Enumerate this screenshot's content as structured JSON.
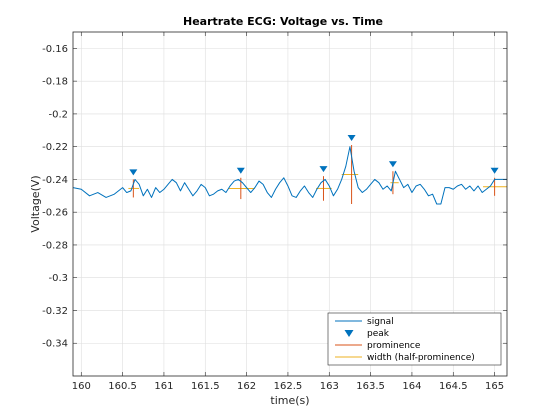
{
  "chart_data": {
    "type": "line",
    "title": "Heartrate ECG: Voltage vs. Time",
    "xlabel": "time(s)",
    "ylabel": "Voltage(V)",
    "xlim": [
      159.9,
      165.15
    ],
    "ylim": [
      -0.36,
      -0.15
    ],
    "xticks": [
      160,
      160.5,
      161,
      161.5,
      162,
      162.5,
      163,
      163.5,
      164,
      164.5,
      165
    ],
    "xtick_labels": [
      "160",
      "160.5",
      "161",
      "161.5",
      "162",
      "162.5",
      "163",
      "163.5",
      "164",
      "164.5",
      "165"
    ],
    "yticks": [
      -0.16,
      -0.18,
      -0.2,
      -0.22,
      -0.24,
      -0.26,
      -0.28,
      -0.3,
      -0.32,
      -0.34
    ],
    "ytick_labels": [
      "-0.16",
      "-0.18",
      "-0.2",
      "-0.22",
      "-0.24",
      "-0.26",
      "-0.28",
      "-0.3",
      "-0.32",
      "-0.34"
    ],
    "grid": true,
    "legend_position": "bottom-right",
    "legend": [
      "signal",
      "peak",
      "prominence",
      "width (half-prominence)"
    ],
    "series": [
      {
        "name": "signal",
        "x": [
          159.9,
          160.0,
          160.1,
          160.2,
          160.3,
          160.4,
          160.5,
          160.55,
          160.6,
          160.65,
          160.7,
          160.75,
          160.8,
          160.85,
          160.9,
          160.95,
          161.0,
          161.05,
          161.1,
          161.15,
          161.2,
          161.25,
          161.3,
          161.35,
          161.4,
          161.45,
          161.5,
          161.55,
          161.6,
          161.65,
          161.7,
          161.75,
          161.8,
          161.85,
          161.9,
          161.95,
          162.0,
          162.05,
          162.1,
          162.15,
          162.2,
          162.25,
          162.3,
          162.35,
          162.4,
          162.45,
          162.5,
          162.55,
          162.6,
          162.65,
          162.7,
          162.75,
          162.8,
          162.85,
          162.9,
          162.95,
          163.0,
          163.05,
          163.1,
          163.15,
          163.2,
          163.25,
          163.3,
          163.35,
          163.4,
          163.45,
          163.5,
          163.55,
          163.6,
          163.65,
          163.7,
          163.75,
          163.8,
          163.85,
          163.9,
          163.95,
          164.0,
          164.05,
          164.1,
          164.15,
          164.2,
          164.25,
          164.3,
          164.35,
          164.4,
          164.45,
          164.5,
          164.55,
          164.6,
          164.65,
          164.7,
          164.75,
          164.8,
          164.85,
          164.9,
          164.95,
          165.0,
          165.05,
          165.1,
          165.15
        ],
        "y": [
          -0.245,
          -0.246,
          -0.25,
          -0.248,
          -0.251,
          -0.249,
          -0.245,
          -0.248,
          -0.247,
          -0.24,
          -0.243,
          -0.25,
          -0.246,
          -0.251,
          -0.245,
          -0.248,
          -0.246,
          -0.243,
          -0.24,
          -0.242,
          -0.247,
          -0.242,
          -0.246,
          -0.25,
          -0.247,
          -0.243,
          -0.245,
          -0.25,
          -0.249,
          -0.247,
          -0.246,
          -0.248,
          -0.244,
          -0.241,
          -0.24,
          -0.242,
          -0.245,
          -0.248,
          -0.245,
          -0.241,
          -0.243,
          -0.248,
          -0.251,
          -0.246,
          -0.242,
          -0.239,
          -0.244,
          -0.25,
          -0.251,
          -0.247,
          -0.244,
          -0.248,
          -0.251,
          -0.246,
          -0.242,
          -0.24,
          -0.244,
          -0.25,
          -0.246,
          -0.24,
          -0.232,
          -0.22,
          -0.235,
          -0.245,
          -0.248,
          -0.246,
          -0.243,
          -0.24,
          -0.242,
          -0.246,
          -0.244,
          -0.247,
          -0.235,
          -0.24,
          -0.245,
          -0.243,
          -0.248,
          -0.244,
          -0.243,
          -0.246,
          -0.25,
          -0.249,
          -0.255,
          -0.255,
          -0.245,
          -0.245,
          -0.246,
          -0.244,
          -0.243,
          -0.246,
          -0.244,
          -0.247,
          -0.244,
          -0.248,
          -0.246,
          -0.244,
          -0.24,
          -0.24,
          -0.24,
          -0.24
        ]
      },
      {
        "name": "peak",
        "x": [
          160.63,
          161.93,
          162.93,
          163.27,
          163.77,
          165.0
        ],
        "y": [
          -0.24,
          -0.239,
          -0.238,
          -0.219,
          -0.235,
          -0.239
        ]
      }
    ],
    "prominence": [
      {
        "x": 160.63,
        "y_top": -0.24,
        "y_bottom": -0.251
      },
      {
        "x": 161.93,
        "y_top": -0.239,
        "y_bottom": -0.252
      },
      {
        "x": 162.93,
        "y_top": -0.238,
        "y_bottom": -0.253
      },
      {
        "x": 163.27,
        "y_top": -0.219,
        "y_bottom": -0.255
      },
      {
        "x": 163.77,
        "y_top": -0.235,
        "y_bottom": -0.249
      },
      {
        "x": 165.0,
        "y_top": -0.239,
        "y_bottom": -0.25
      }
    ],
    "half_prominence_width": [
      {
        "x_start": 160.57,
        "x_end": 160.7,
        "y": -0.2455
      },
      {
        "x_start": 161.78,
        "x_end": 162.1,
        "y": -0.2455
      },
      {
        "x_start": 162.84,
        "x_end": 163.03,
        "y": -0.2455
      },
      {
        "x_start": 163.15,
        "x_end": 163.35,
        "y": -0.237
      },
      {
        "x_start": 163.74,
        "x_end": 163.84,
        "y": -0.242
      },
      {
        "x_start": 164.86,
        "x_end": 165.15,
        "y": -0.2445
      }
    ],
    "colors": {
      "signal": "#0072BD",
      "peak": "#0072BD",
      "prominence": "#D95319",
      "width": "#EDB120",
      "grid": "#DEDEDE",
      "axis": "#262626"
    }
  }
}
